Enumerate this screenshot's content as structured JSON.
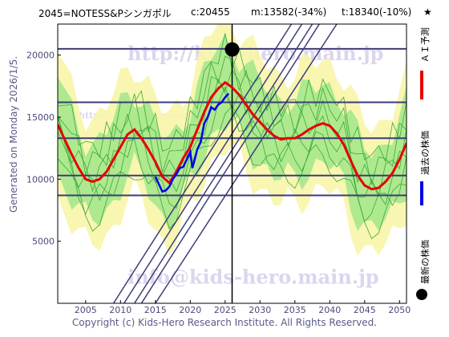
{
  "header": {
    "title": "2045=NOTESS&Pシンガポル",
    "current": "c:20455",
    "minimum": "m:13582(-34%)",
    "target": "t:18340(-10%)",
    "star": "★"
  },
  "side_label": "Generated on Monday 2026/1/5.",
  "footer": "Copyright (c) Kids-Hero Research Institute. All Rights Reserved.",
  "watermarks": {
    "top": "http://kids-hero.main.jp",
    "middle": "http://kids-hero.main.jp/analysys/s2045.html",
    "bottom": "info@kids-hero.main.jp"
  },
  "legend": {
    "ai": "ＡＩ予測",
    "past": "過去の株価",
    "latest": "最新の株価"
  },
  "colors": {
    "ai": "#e80000",
    "past": "#0000e6",
    "latest": "#000000",
    "band_outer": "#f7f5a8",
    "band_inner": "#a5e88c",
    "band_line": "#3aa83a",
    "hline": "#3c3c78",
    "diag": "#3c3c78",
    "axis_text": "#4a4a7a"
  },
  "chart_data": {
    "type": "line",
    "title": "2045=NOTESS&Pシンガポル",
    "xlim": [
      2001,
      2051
    ],
    "ylim": [
      0,
      22500
    ],
    "x_ticks": [
      2005,
      2010,
      2015,
      2020,
      2025,
      2030,
      2035,
      2040,
      2045,
      2050
    ],
    "y_ticks": [
      5000,
      10000,
      15000,
      20000
    ],
    "grid": false,
    "legend_position": "right",
    "hlines": [
      8700,
      10300,
      13300,
      16200,
      20500
    ],
    "current_marker": {
      "x": 2026.0,
      "y": 20455
    },
    "current_vline_x": 2026.0,
    "diagonals": [
      {
        "x": [
          2009,
          2034.5
        ],
        "y": [
          0,
          22500
        ]
      },
      {
        "x": [
          2010.5,
          2036
        ],
        "y": [
          0,
          22500
        ]
      },
      {
        "x": [
          2012,
          2037.5
        ],
        "y": [
          0,
          22500
        ]
      },
      {
        "x": [
          2013,
          2038.5
        ],
        "y": [
          0,
          22500
        ]
      },
      {
        "x": [
          2015,
          2041
        ],
        "y": [
          0,
          22500
        ]
      }
    ],
    "series": [
      {
        "name": "ＡＩ予測",
        "x": [
          2001,
          2003,
          2004,
          2005,
          2006,
          2007,
          2008,
          2009,
          2010,
          2011,
          2012,
          2013,
          2014,
          2015,
          2016,
          2017,
          2018,
          2019,
          2020,
          2021,
          2022,
          2023,
          2024,
          2025,
          2026,
          2027,
          2028,
          2029,
          2030,
          2031,
          2032,
          2033,
          2034,
          2035,
          2036,
          2037,
          2038,
          2039,
          2040,
          2041,
          2042,
          2043,
          2044,
          2045,
          2046,
          2047,
          2048,
          2049,
          2050,
          2051
        ],
        "y": [
          14400,
          12000,
          10900,
          10000,
          9800,
          10000,
          10600,
          11600,
          12600,
          13600,
          14000,
          13300,
          12400,
          11400,
          10200,
          9700,
          10600,
          11700,
          12600,
          14000,
          15400,
          16600,
          17300,
          17800,
          17400,
          16800,
          16000,
          15200,
          14600,
          14000,
          13500,
          13200,
          13300,
          13300,
          13600,
          14000,
          14300,
          14500,
          14300,
          13700,
          12800,
          11500,
          10300,
          9500,
          9200,
          9300,
          9800,
          10500,
          11600,
          12900
        ]
      },
      {
        "name": "過去の株価",
        "x": [
          2015,
          2015.5,
          2016,
          2016.5,
          2017,
          2017.5,
          2018,
          2018.5,
          2019,
          2019.5,
          2020,
          2020.3,
          2020.6,
          2021,
          2021.5,
          2022,
          2022.5,
          2023,
          2023.5,
          2024,
          2024.5,
          2025,
          2025.5
        ],
        "y": [
          10200,
          9600,
          9000,
          9100,
          9400,
          10000,
          10400,
          10900,
          11000,
          11600,
          12200,
          10900,
          11500,
          12400,
          13000,
          14500,
          15000,
          15800,
          15600,
          16000,
          16200,
          16600,
          16900
        ]
      }
    ]
  }
}
